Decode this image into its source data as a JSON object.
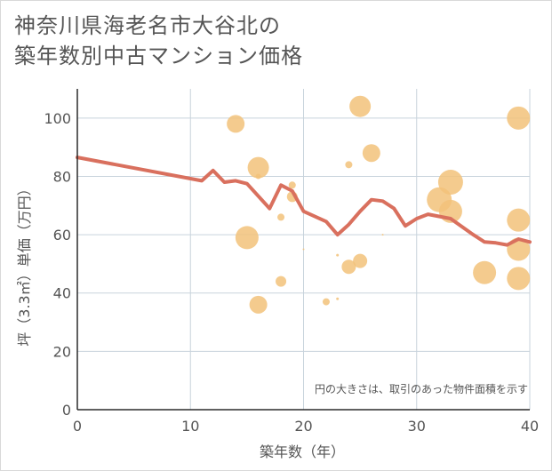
{
  "title_lines": [
    "神奈川県海老名市大谷北の",
    "築年数別中古マンション価格"
  ],
  "chart_data": {
    "type": "scatter",
    "title": "神奈川県海老名市大谷北の築年数別中古マンション価格",
    "xlabel": "築年数（年）",
    "ylabel": "坪（3.3㎡）単価（万円）",
    "xlim": [
      0,
      40
    ],
    "ylim": [
      0,
      110
    ],
    "xticks": [
      0,
      10,
      20,
      30,
      40
    ],
    "yticks": [
      0,
      20,
      40,
      60,
      80,
      100
    ],
    "grid": true,
    "annotation": "円の大きさは、取引のあった物件面積を示す",
    "colors": {
      "bubble": "#f2c27a",
      "line": "#d9705e"
    },
    "points": [
      {
        "x": 14,
        "y": 98,
        "size": 10
      },
      {
        "x": 16,
        "y": 83,
        "size": 12
      },
      {
        "x": 16,
        "y": 80,
        "size": 3
      },
      {
        "x": 15,
        "y": 59,
        "size": 13
      },
      {
        "x": 16,
        "y": 36,
        "size": 10
      },
      {
        "x": 18,
        "y": 66,
        "size": 4
      },
      {
        "x": 18,
        "y": 44,
        "size": 6
      },
      {
        "x": 19,
        "y": 77,
        "size": 4
      },
      {
        "x": 19,
        "y": 73,
        "size": 6
      },
      {
        "x": 20,
        "y": 55,
        "size": 1
      },
      {
        "x": 22,
        "y": 37,
        "size": 4
      },
      {
        "x": 23,
        "y": 53,
        "size": 1.5
      },
      {
        "x": 23,
        "y": 38,
        "size": 1.5
      },
      {
        "x": 24,
        "y": 84,
        "size": 4
      },
      {
        "x": 24,
        "y": 49,
        "size": 8
      },
      {
        "x": 25,
        "y": 104,
        "size": 12
      },
      {
        "x": 25,
        "y": 51,
        "size": 8
      },
      {
        "x": 26,
        "y": 88,
        "size": 10
      },
      {
        "x": 27,
        "y": 60,
        "size": 1
      },
      {
        "x": 32,
        "y": 72,
        "size": 14
      },
      {
        "x": 33,
        "y": 78,
        "size": 14
      },
      {
        "x": 33,
        "y": 68,
        "size": 13
      },
      {
        "x": 36,
        "y": 47,
        "size": 13
      },
      {
        "x": 39,
        "y": 100,
        "size": 13
      },
      {
        "x": 39,
        "y": 65,
        "size": 13
      },
      {
        "x": 39,
        "y": 55,
        "size": 13
      },
      {
        "x": 39,
        "y": 45,
        "size": 13
      }
    ],
    "trend": [
      {
        "x": 0,
        "y": 86.5
      },
      {
        "x": 11,
        "y": 78.5
      },
      {
        "x": 12,
        "y": 82
      },
      {
        "x": 13,
        "y": 78
      },
      {
        "x": 14,
        "y": 78.5
      },
      {
        "x": 15,
        "y": 77.5
      },
      {
        "x": 17,
        "y": 69
      },
      {
        "x": 18,
        "y": 77
      },
      {
        "x": 19,
        "y": 75
      },
      {
        "x": 20,
        "y": 68
      },
      {
        "x": 22,
        "y": 64.5
      },
      {
        "x": 23,
        "y": 60
      },
      {
        "x": 24,
        "y": 63.5
      },
      {
        "x": 25,
        "y": 68
      },
      {
        "x": 26,
        "y": 72
      },
      {
        "x": 27,
        "y": 71.5
      },
      {
        "x": 28,
        "y": 69
      },
      {
        "x": 29,
        "y": 63
      },
      {
        "x": 30,
        "y": 65.5
      },
      {
        "x": 31,
        "y": 67
      },
      {
        "x": 33,
        "y": 65.5
      },
      {
        "x": 35,
        "y": 60
      },
      {
        "x": 36,
        "y": 57.5
      },
      {
        "x": 37,
        "y": 57.2
      },
      {
        "x": 38,
        "y": 56.5
      },
      {
        "x": 39,
        "y": 58.5
      },
      {
        "x": 40,
        "y": 57.5
      }
    ]
  }
}
